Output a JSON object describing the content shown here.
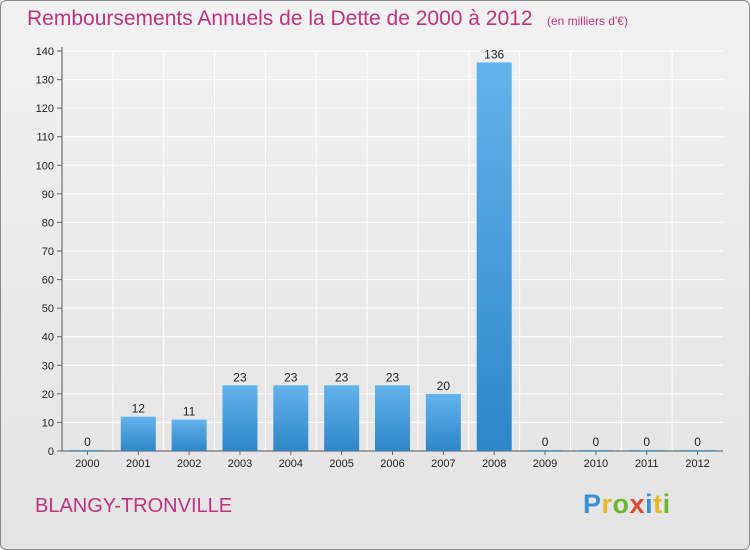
{
  "header": {
    "title": "Remboursements Annuels de la Dette de 2000 à 2012",
    "unit": "(en milliers d'€)"
  },
  "footer": {
    "place": "BLANGY-TRONVILLE",
    "logo_letters": [
      "P",
      "r",
      "o",
      "x",
      "i",
      "t",
      "i"
    ],
    "logo_colors": [
      "#3a8fd8",
      "#e6b72a",
      "#6bb82f",
      "#e04a2f",
      "#3a8fd8",
      "#e6b72a",
      "#6bb82f"
    ]
  },
  "colors": {
    "title": "#c0337e",
    "bar_light": "#63b3ec",
    "bar_dark": "#2e86c8",
    "grid": "#ffffff"
  },
  "chart_data": {
    "type": "bar",
    "title": "Remboursements Annuels de la Dette de 2000 à 2012",
    "categories": [
      "2000",
      "2001",
      "2002",
      "2003",
      "2004",
      "2005",
      "2006",
      "2007",
      "2008",
      "2009",
      "2010",
      "2011",
      "2012"
    ],
    "values": [
      0,
      12,
      11,
      23,
      23,
      23,
      23,
      20,
      136,
      0,
      0,
      0,
      0
    ],
    "ylim": [
      0,
      140
    ],
    "yticks": [
      0,
      10,
      20,
      30,
      40,
      50,
      60,
      70,
      80,
      90,
      100,
      110,
      120,
      130,
      140
    ],
    "grid": true,
    "data_labels": true,
    "xlabel": "",
    "ylabel": ""
  }
}
